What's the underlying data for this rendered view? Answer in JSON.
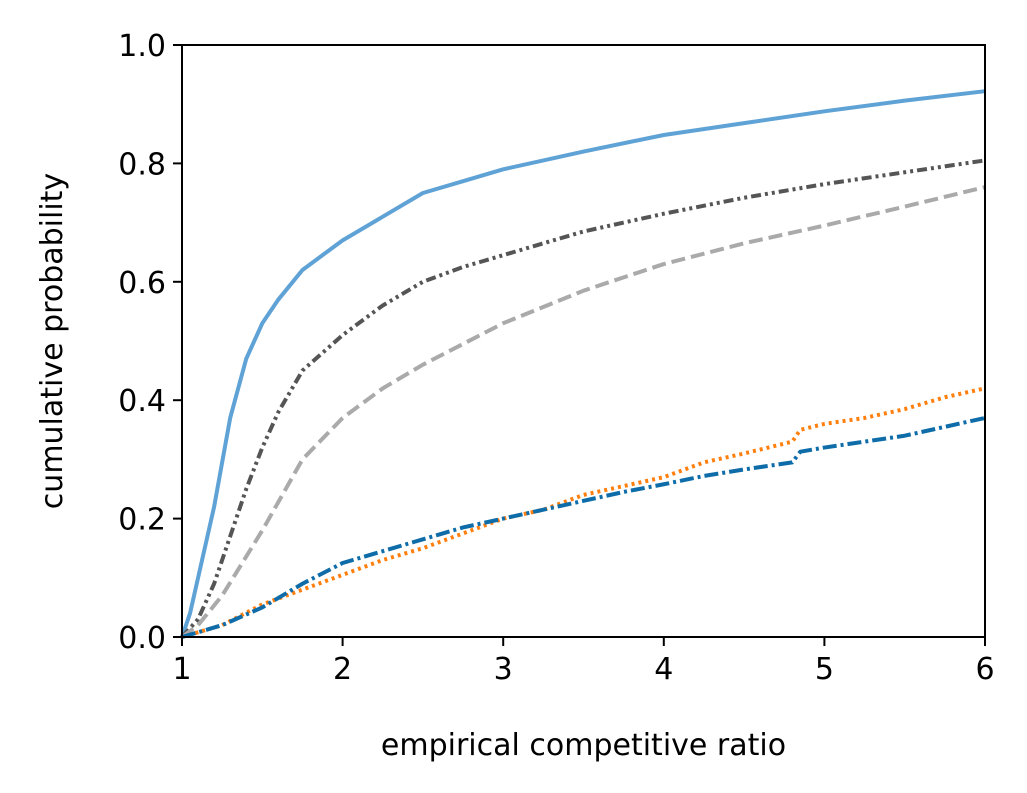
{
  "chart_data": {
    "type": "line",
    "title": "",
    "xlabel": "empirical competitive ratio",
    "ylabel": "cumulative probability",
    "xlim": [
      1,
      6
    ],
    "ylim": [
      0.0,
      1.0
    ],
    "xticks": [
      1,
      2,
      3,
      4,
      5,
      6
    ],
    "xtick_labels": [
      "1",
      "2",
      "3",
      "4",
      "5",
      "6"
    ],
    "yticks": [
      0.0,
      0.2,
      0.4,
      0.6,
      0.8,
      1.0
    ],
    "ytick_labels": [
      "0.0",
      "0.2",
      "0.4",
      "0.6",
      "0.8",
      "1.0"
    ],
    "grid": false,
    "legend": "none",
    "series": [
      {
        "color": "#5fa2d6",
        "style": "solid",
        "points": [
          [
            1.0,
            0.0
          ],
          [
            1.05,
            0.04
          ],
          [
            1.1,
            0.1
          ],
          [
            1.2,
            0.22
          ],
          [
            1.3,
            0.37
          ],
          [
            1.4,
            0.47
          ],
          [
            1.5,
            0.53
          ],
          [
            1.6,
            0.57
          ],
          [
            1.75,
            0.62
          ],
          [
            2.0,
            0.67
          ],
          [
            2.25,
            0.71
          ],
          [
            2.5,
            0.75
          ],
          [
            2.75,
            0.77
          ],
          [
            3.0,
            0.79
          ],
          [
            3.5,
            0.82
          ],
          [
            4.0,
            0.848
          ],
          [
            4.5,
            0.868
          ],
          [
            5.0,
            0.888
          ],
          [
            5.5,
            0.906
          ],
          [
            6.0,
            0.922
          ]
        ]
      },
      {
        "color": "#555555",
        "style": "dashdotdot",
        "points": [
          [
            1.0,
            0.0
          ],
          [
            1.1,
            0.03
          ],
          [
            1.2,
            0.09
          ],
          [
            1.3,
            0.17
          ],
          [
            1.4,
            0.25
          ],
          [
            1.5,
            0.32
          ],
          [
            1.6,
            0.38
          ],
          [
            1.75,
            0.45
          ],
          [
            2.0,
            0.51
          ],
          [
            2.25,
            0.56
          ],
          [
            2.5,
            0.6
          ],
          [
            2.75,
            0.625
          ],
          [
            3.0,
            0.645
          ],
          [
            3.5,
            0.685
          ],
          [
            4.0,
            0.715
          ],
          [
            4.5,
            0.742
          ],
          [
            5.0,
            0.765
          ],
          [
            5.5,
            0.785
          ],
          [
            6.0,
            0.805
          ]
        ]
      },
      {
        "color": "#aaaaaa",
        "style": "dashed",
        "points": [
          [
            1.0,
            0.0
          ],
          [
            1.1,
            0.02
          ],
          [
            1.25,
            0.07
          ],
          [
            1.5,
            0.18
          ],
          [
            1.75,
            0.3
          ],
          [
            2.0,
            0.37
          ],
          [
            2.25,
            0.42
          ],
          [
            2.5,
            0.46
          ],
          [
            2.75,
            0.495
          ],
          [
            3.0,
            0.53
          ],
          [
            3.5,
            0.585
          ],
          [
            4.0,
            0.63
          ],
          [
            4.5,
            0.665
          ],
          [
            5.0,
            0.695
          ],
          [
            5.5,
            0.727
          ],
          [
            6.0,
            0.76
          ]
        ]
      },
      {
        "color": "#ff7f0e",
        "style": "dotted",
        "points": [
          [
            1.0,
            0.0
          ],
          [
            1.25,
            0.02
          ],
          [
            1.5,
            0.055
          ],
          [
            1.75,
            0.08
          ],
          [
            2.0,
            0.105
          ],
          [
            2.25,
            0.13
          ],
          [
            2.5,
            0.15
          ],
          [
            2.75,
            0.175
          ],
          [
            3.0,
            0.2
          ],
          [
            3.25,
            0.215
          ],
          [
            3.5,
            0.24
          ],
          [
            3.75,
            0.255
          ],
          [
            4.0,
            0.27
          ],
          [
            4.25,
            0.295
          ],
          [
            4.5,
            0.31
          ],
          [
            4.8,
            0.33
          ],
          [
            4.85,
            0.35
          ],
          [
            5.0,
            0.36
          ],
          [
            5.25,
            0.37
          ],
          [
            5.5,
            0.385
          ],
          [
            5.75,
            0.405
          ],
          [
            6.0,
            0.42
          ]
        ]
      },
      {
        "color": "#0e6ca8",
        "style": "dashdot",
        "points": [
          [
            1.0,
            0.0
          ],
          [
            1.25,
            0.02
          ],
          [
            1.5,
            0.05
          ],
          [
            1.75,
            0.09
          ],
          [
            2.0,
            0.125
          ],
          [
            2.25,
            0.145
          ],
          [
            2.5,
            0.165
          ],
          [
            2.75,
            0.185
          ],
          [
            3.0,
            0.2
          ],
          [
            3.25,
            0.215
          ],
          [
            3.5,
            0.23
          ],
          [
            3.75,
            0.245
          ],
          [
            4.0,
            0.258
          ],
          [
            4.25,
            0.272
          ],
          [
            4.5,
            0.283
          ],
          [
            4.8,
            0.295
          ],
          [
            4.85,
            0.313
          ],
          [
            5.0,
            0.32
          ],
          [
            5.25,
            0.33
          ],
          [
            5.5,
            0.34
          ],
          [
            5.75,
            0.355
          ],
          [
            6.0,
            0.37
          ]
        ]
      }
    ]
  }
}
